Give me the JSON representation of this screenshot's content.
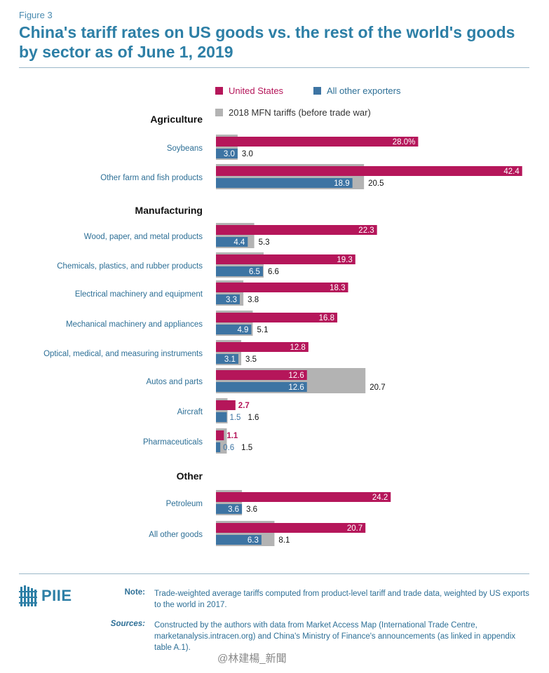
{
  "figure_label": "Figure 3",
  "title": "China's tariff rates on US goods vs. the rest of the world's goods by sector as of June 1, 2019",
  "colors": {
    "us": "#b5165a",
    "others": "#3d74a3",
    "mfn": "#b3b3b3",
    "title": "#2d7fa6",
    "label": "#2d6f96"
  },
  "legend": [
    {
      "label": "United States",
      "color": "#b5165a"
    },
    {
      "label": "All other exporters",
      "color": "#3d74a3"
    },
    {
      "label": "2018 MFN tariffs (before trade war)",
      "color": "#b3b3b3"
    }
  ],
  "chart_data": {
    "type": "bar",
    "orientation": "horizontal",
    "series_names": [
      "United States",
      "All other exporters",
      "2018 MFN tariffs (before trade war)"
    ],
    "groups": [
      {
        "name": "Agriculture",
        "items": [
          {
            "label": "Soybeans",
            "us": 28.0,
            "us_label": "28.0%",
            "others": 3.0,
            "others_label": "3.0",
            "mfn": 3.0,
            "mfn_label": "3.0"
          },
          {
            "label": "Other farm and fish products",
            "us": 42.4,
            "us_label": "42.4",
            "others": 18.9,
            "others_label": "18.9",
            "mfn": 20.5,
            "mfn_label": "20.5"
          }
        ]
      },
      {
        "name": "Manufacturing",
        "items": [
          {
            "label": "Wood, paper, and metal products",
            "us": 22.3,
            "us_label": "22.3",
            "others": 4.4,
            "others_label": "4.4",
            "mfn": 5.3,
            "mfn_label": "5.3"
          },
          {
            "label": "Chemicals, plastics, and rubber products",
            "us": 19.3,
            "us_label": "19.3",
            "others": 6.5,
            "others_label": "6.5",
            "mfn": 6.6,
            "mfn_label": "6.6"
          },
          {
            "label": "Electrical machinery and equipment",
            "us": 18.3,
            "us_label": "18.3",
            "others": 3.3,
            "others_label": "3.3",
            "mfn": 3.8,
            "mfn_label": "3.8"
          },
          {
            "label": "Mechanical machinery and appliances",
            "us": 16.8,
            "us_label": "16.8",
            "others": 4.9,
            "others_label": "4.9",
            "mfn": 5.1,
            "mfn_label": "5.1"
          },
          {
            "label": "Optical, medical, and measuring instruments",
            "us": 12.8,
            "us_label": "12.8",
            "others": 3.1,
            "others_label": "3.1",
            "mfn": 3.5,
            "mfn_label": "3.5"
          },
          {
            "label": "Autos and parts",
            "us": 12.6,
            "us_label": "12.6",
            "others": 12.6,
            "others_label": "12.6",
            "mfn": 20.7,
            "mfn_label": "20.7"
          },
          {
            "label": "Aircraft",
            "us": 2.7,
            "us_label": "2.7",
            "others": 1.5,
            "others_label": "1.5",
            "mfn": 1.6,
            "mfn_label": "1.6"
          },
          {
            "label": "Pharmaceuticals",
            "us": 1.1,
            "us_label": "1.1",
            "others": 0.6,
            "others_label": "0.6",
            "mfn": 1.5,
            "mfn_label": "1.5"
          }
        ]
      },
      {
        "name": "Other",
        "items": [
          {
            "label": "Petroleum",
            "us": 24.2,
            "us_label": "24.2",
            "others": 3.6,
            "others_label": "3.6",
            "mfn": 3.6,
            "mfn_label": "3.6"
          },
          {
            "label": "All other goods",
            "us": 20.7,
            "us_label": "20.7",
            "others": 6.3,
            "others_label": "6.3",
            "mfn": 8.1,
            "mfn_label": "8.1"
          }
        ]
      }
    ]
  },
  "footer": {
    "logo_text": "PIIE",
    "note_key": "Note:",
    "note_text": "Trade-weighted average tariffs computed from product-level tariff and trade data, weighted by US exports to the world in 2017.",
    "sources_key": "Sources:",
    "sources_text": "Constructed by the authors with data from Market Access Map (International Trade Centre, marketanalysis.intracen.org) and China's Ministry of Finance's announcements (as linked in appendix table A.1).",
    "watermark": "@林建楊_新聞"
  }
}
